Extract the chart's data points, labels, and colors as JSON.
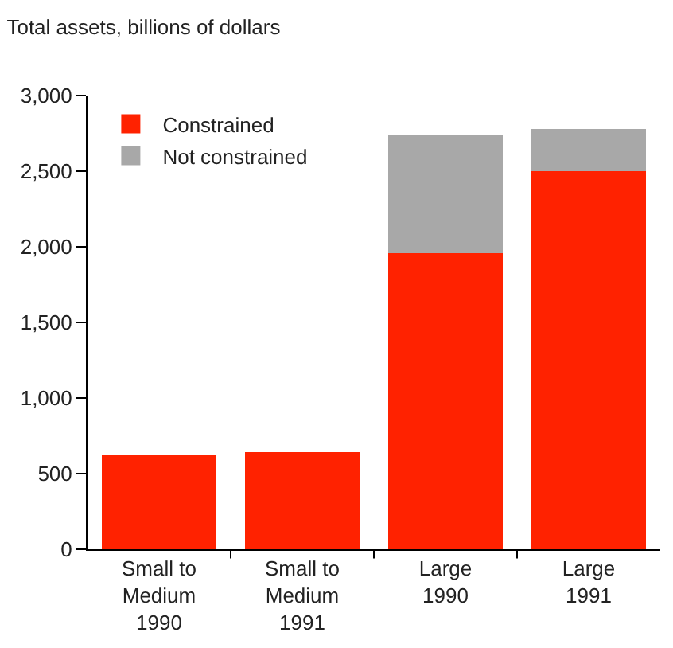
{
  "chart_data": {
    "type": "bar",
    "title": "Total assets, billions of dollars",
    "stacked": true,
    "categories": [
      "Small to\nMedium\n1990",
      "Small to\nMedium\n1991",
      "Large\n1990",
      "Large\n1991"
    ],
    "series": [
      {
        "name": "Constrained",
        "color": "#ff2200",
        "values": [
          620,
          640,
          1960,
          2500
        ]
      },
      {
        "name": "Not constrained",
        "color": "#a8a8a8",
        "values": [
          0,
          0,
          780,
          280
        ]
      }
    ],
    "ylim": [
      0,
      3000
    ],
    "yticks": [
      {
        "value": 0,
        "label": "0"
      },
      {
        "value": 500,
        "label": "500"
      },
      {
        "value": 1000,
        "label": "1,000"
      },
      {
        "value": 1500,
        "label": "1,500"
      },
      {
        "value": 2000,
        "label": "2,000"
      },
      {
        "value": 2500,
        "label": "2,500"
      },
      {
        "value": 3000,
        "label": "3,000"
      }
    ],
    "legend": "top left"
  }
}
